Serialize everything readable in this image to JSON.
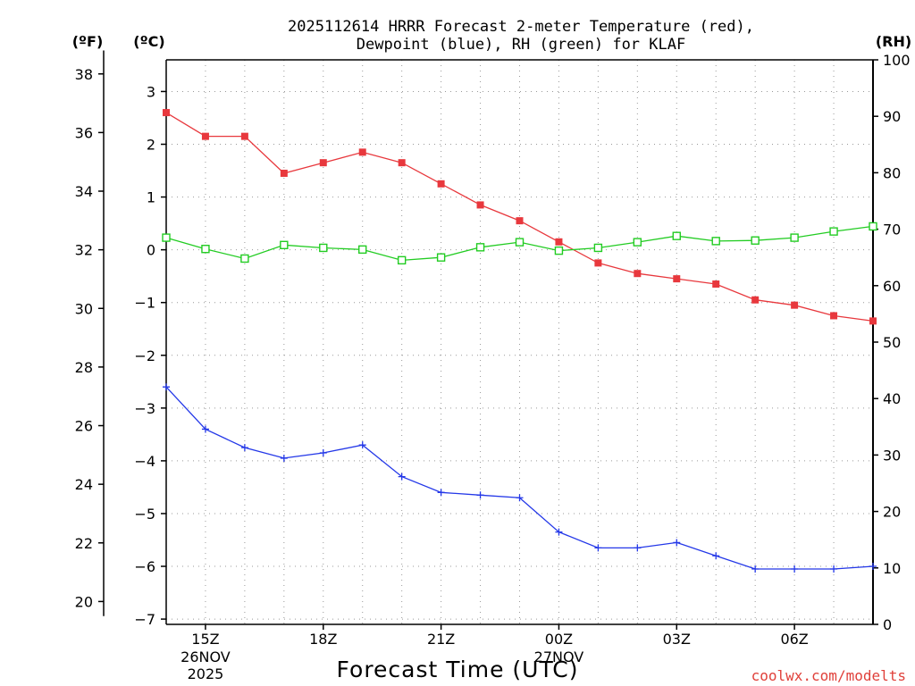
{
  "header": {
    "title_line1": "2025112614 HRRR Forecast 2-meter Temperature (red),",
    "title_line2": "Dewpoint (blue), RH (green) for KLAF"
  },
  "units": {
    "fahrenheit": "(ºF)",
    "celsius": "(ºC)",
    "rh": "(RH)"
  },
  "footer": {
    "xlabel": "Forecast Time (UTC)",
    "credit": "coolwx.com/modelts"
  },
  "colors": {
    "temperature": "#e8383d",
    "dewpoint": "#2438e8",
    "rh": "#22cc22",
    "grid": "#999999"
  },
  "chart_data": {
    "type": "line",
    "title": "2025112614 HRRR Forecast 2-meter Temperature (red), Dewpoint (blue), RH (green) for KLAF",
    "xlabel": "Forecast Time (UTC)",
    "x_hours": [
      14,
      15,
      16,
      17,
      18,
      19,
      20,
      21,
      22,
      23,
      0,
      1,
      2,
      3,
      4,
      5,
      6,
      7,
      8
    ],
    "xlim": [
      14,
      32
    ],
    "x_ticks": [
      {
        "x": 15,
        "label": "15Z",
        "sub": [
          "26NOV",
          "2025"
        ]
      },
      {
        "x": 18,
        "label": "18Z",
        "sub": []
      },
      {
        "x": 21,
        "label": "21Z",
        "sub": []
      },
      {
        "x": 24,
        "label": "00Z",
        "sub": [
          "27NOV"
        ]
      },
      {
        "x": 27,
        "label": "03Z",
        "sub": []
      },
      {
        "x": 30,
        "label": "06Z",
        "sub": []
      }
    ],
    "y_celsius": {
      "lim": [
        -7.1,
        3.6
      ],
      "ticks": [
        3,
        2,
        1,
        0,
        -1,
        -2,
        -3,
        -4,
        -5,
        -6,
        -7
      ],
      "tick_labels": [
        "3",
        "2",
        "1",
        "0",
        "−1",
        "−2",
        "−3",
        "−4",
        "−5",
        "−6",
        "−7"
      ]
    },
    "y_fahrenheit": {
      "ticks": [
        38,
        36,
        34,
        32,
        30,
        28,
        26,
        24,
        22,
        20
      ],
      "tick_labels": [
        "38",
        "36",
        "34",
        "32",
        "30",
        "28",
        "26",
        "24",
        "22",
        "20"
      ]
    },
    "y_rh": {
      "lim": [
        0,
        100
      ],
      "ticks": [
        100,
        90,
        80,
        70,
        60,
        50,
        40,
        30,
        20,
        10,
        0
      ],
      "tick_labels": [
        "100",
        "90",
        "80",
        "70",
        "60",
        "50",
        "40",
        "30",
        "20",
        "10",
        "0"
      ]
    },
    "series": [
      {
        "name": "Temperature (°C)",
        "axis": "celsius",
        "color": "#e8383d",
        "marker": "filled-square",
        "values": [
          2.6,
          2.15,
          2.15,
          1.45,
          1.65,
          1.85,
          1.65,
          1.25,
          0.85,
          0.55,
          0.15,
          -0.25,
          -0.45,
          -0.55,
          -0.65,
          -0.95,
          -1.05,
          -1.25,
          -1.35
        ]
      },
      {
        "name": "Dewpoint (°C)",
        "axis": "celsius",
        "color": "#2438e8",
        "marker": "plus",
        "values": [
          -2.6,
          -3.4,
          -3.75,
          -3.95,
          -3.85,
          -3.7,
          -4.3,
          -4.6,
          -4.65,
          -4.7,
          -5.35,
          -5.65,
          -5.65,
          -5.55,
          -5.8,
          -6.05,
          -6.05,
          -6.05,
          -6.0
        ]
      },
      {
        "name": "RH (%)",
        "axis": "rh",
        "color": "#22cc22",
        "marker": "open-square",
        "values": [
          68.5,
          66.5,
          64.8,
          67.2,
          66.7,
          66.4,
          64.5,
          65.0,
          66.8,
          67.7,
          66.2,
          66.7,
          67.7,
          68.8,
          67.9,
          68.0,
          68.5,
          69.6,
          70.5
        ]
      }
    ]
  }
}
